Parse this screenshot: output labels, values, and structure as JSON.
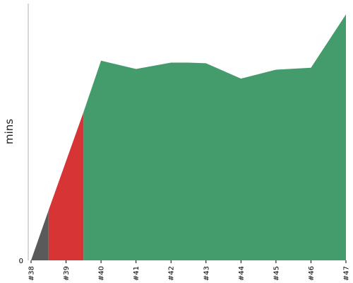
{
  "chart_data": {
    "type": "area",
    "ylabel": "mins",
    "x_labels": [
      "#38",
      "#39",
      "#40",
      "#41",
      "#42",
      "#43",
      "#44",
      "#45",
      "#46",
      "#47"
    ],
    "y_ticks": [
      0
    ],
    "ylim": [
      0,
      400
    ],
    "grid": false,
    "colors": {
      "gray": "#5a5a5a",
      "red": "#d73535",
      "green": "#449c6d"
    },
    "segments": [
      {
        "color": "gray",
        "points": [
          [
            0,
            0
          ],
          [
            0.5,
            78
          ]
        ]
      },
      {
        "color": "red",
        "points": [
          [
            0.5,
            78
          ],
          [
            1.5,
            231
          ]
        ]
      },
      {
        "color": "green",
        "points": [
          [
            1.5,
            231
          ],
          [
            2,
            311
          ],
          [
            3,
            298
          ],
          [
            4,
            308
          ],
          [
            4.5,
            308
          ],
          [
            5,
            307
          ],
          [
            6,
            283
          ],
          [
            7,
            297
          ],
          [
            8,
            300
          ],
          [
            9,
            383
          ]
        ]
      }
    ]
  }
}
